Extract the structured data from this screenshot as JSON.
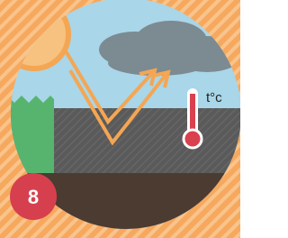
{
  "thermometer": {
    "label": "t°c"
  },
  "badge": {
    "label": "8"
  }
}
